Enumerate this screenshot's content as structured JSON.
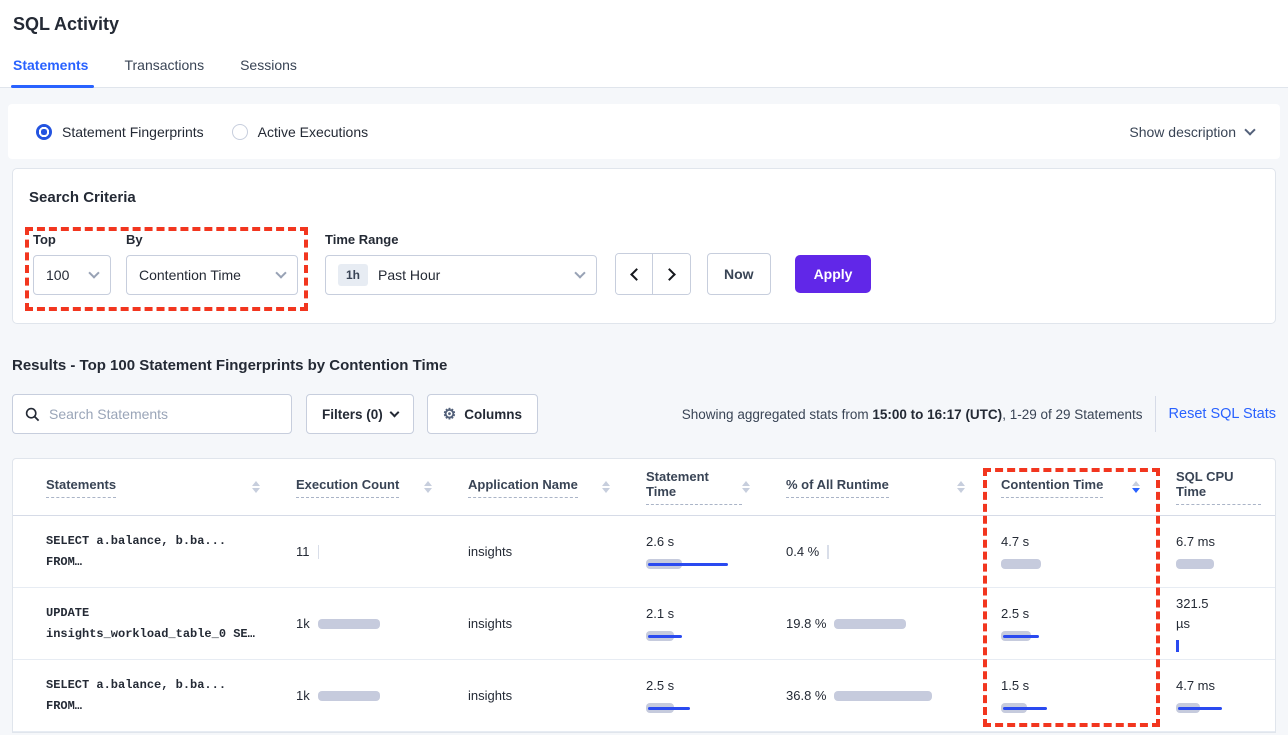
{
  "page": {
    "title": "SQL Activity"
  },
  "tabs": [
    {
      "label": "Statements",
      "active": true
    },
    {
      "label": "Transactions",
      "active": false
    },
    {
      "label": "Sessions",
      "active": false
    }
  ],
  "view_toggle": {
    "options": [
      {
        "label": "Statement Fingerprints",
        "selected": true
      },
      {
        "label": "Active Executions",
        "selected": false
      }
    ],
    "show_description_label": "Show description"
  },
  "search_criteria": {
    "title": "Search Criteria",
    "top": {
      "label": "Top",
      "value": "100"
    },
    "by": {
      "label": "By",
      "value": "Contention Time"
    },
    "time_range": {
      "label": "Time Range",
      "badge": "1h",
      "value": "Past Hour"
    },
    "now_label": "Now",
    "apply_label": "Apply"
  },
  "results": {
    "heading": "Results - Top 100 Statement Fingerprints by Contention Time",
    "search_placeholder": "Search Statements",
    "filters_label": "Filters (0)",
    "columns_label": "Columns",
    "stats_prefix": "Showing aggregated stats from ",
    "stats_bold": "15:00 to 16:17 (UTC)",
    "stats_suffix": ", 1-29 of 29 Statements",
    "reset_label": "Reset SQL Stats"
  },
  "table": {
    "columns": [
      {
        "label": "Statements",
        "sortable": true,
        "sorted": null
      },
      {
        "label": "Execution Count",
        "sortable": true,
        "sorted": null
      },
      {
        "label": "Application Name",
        "sortable": true,
        "sorted": null
      },
      {
        "label": "Statement Time",
        "sortable": true,
        "sorted": null
      },
      {
        "label": "% of All Runtime",
        "sortable": true,
        "sorted": null
      },
      {
        "label": "Contention Time",
        "sortable": true,
        "sorted": "desc"
      },
      {
        "label": "SQL CPU Time",
        "sortable": false,
        "sorted": null
      }
    ],
    "rows": [
      {
        "statement": "SELECT a.balance, b.ba...\nFROM…",
        "execution_count": {
          "text": "11",
          "gray": 0,
          "blue": 0,
          "tick": true
        },
        "application_name": "insights",
        "statement_time": {
          "text": "2.6 s",
          "gray": 36,
          "blue": 80
        },
        "pct_runtime": {
          "text": "0.4 %",
          "gray": 0,
          "blue": 0,
          "tick": true
        },
        "contention_time": {
          "text": "4.7 s",
          "gray": 40,
          "blue": 0
        },
        "sql_cpu_time": {
          "text": "6.7 ms",
          "gray": 38,
          "blue": 0
        }
      },
      {
        "statement": "UPDATE\ninsights_workload_table_0 SE…",
        "execution_count": {
          "text": "1k",
          "gray": 62,
          "blue": 0
        },
        "application_name": "insights",
        "statement_time": {
          "text": "2.1 s",
          "gray": 28,
          "blue": 34
        },
        "pct_runtime": {
          "text": "19.8 %",
          "gray": 72,
          "blue": 0
        },
        "contention_time": {
          "text": "2.5 s",
          "gray": 30,
          "blue": 36
        },
        "sql_cpu_time": {
          "text": "321.5 µs",
          "gray": 0,
          "blue": 0,
          "btick": true
        }
      },
      {
        "statement": "SELECT a.balance, b.ba...\nFROM…",
        "execution_count": {
          "text": "1k",
          "gray": 62,
          "blue": 0
        },
        "application_name": "insights",
        "statement_time": {
          "text": "2.5 s",
          "gray": 28,
          "blue": 42
        },
        "pct_runtime": {
          "text": "36.8 %",
          "gray": 98,
          "blue": 0
        },
        "contention_time": {
          "text": "1.5 s",
          "gray": 26,
          "blue": 44
        },
        "sql_cpu_time": {
          "text": "4.7 ms",
          "gray": 24,
          "blue": 44
        }
      }
    ]
  },
  "colors": {
    "accent_blue": "#2962ff",
    "apply_purple": "#6127e8",
    "bar_gray": "#c6cbdd",
    "bar_blue": "#2a4af0",
    "annotation_red": "#f2361f"
  }
}
